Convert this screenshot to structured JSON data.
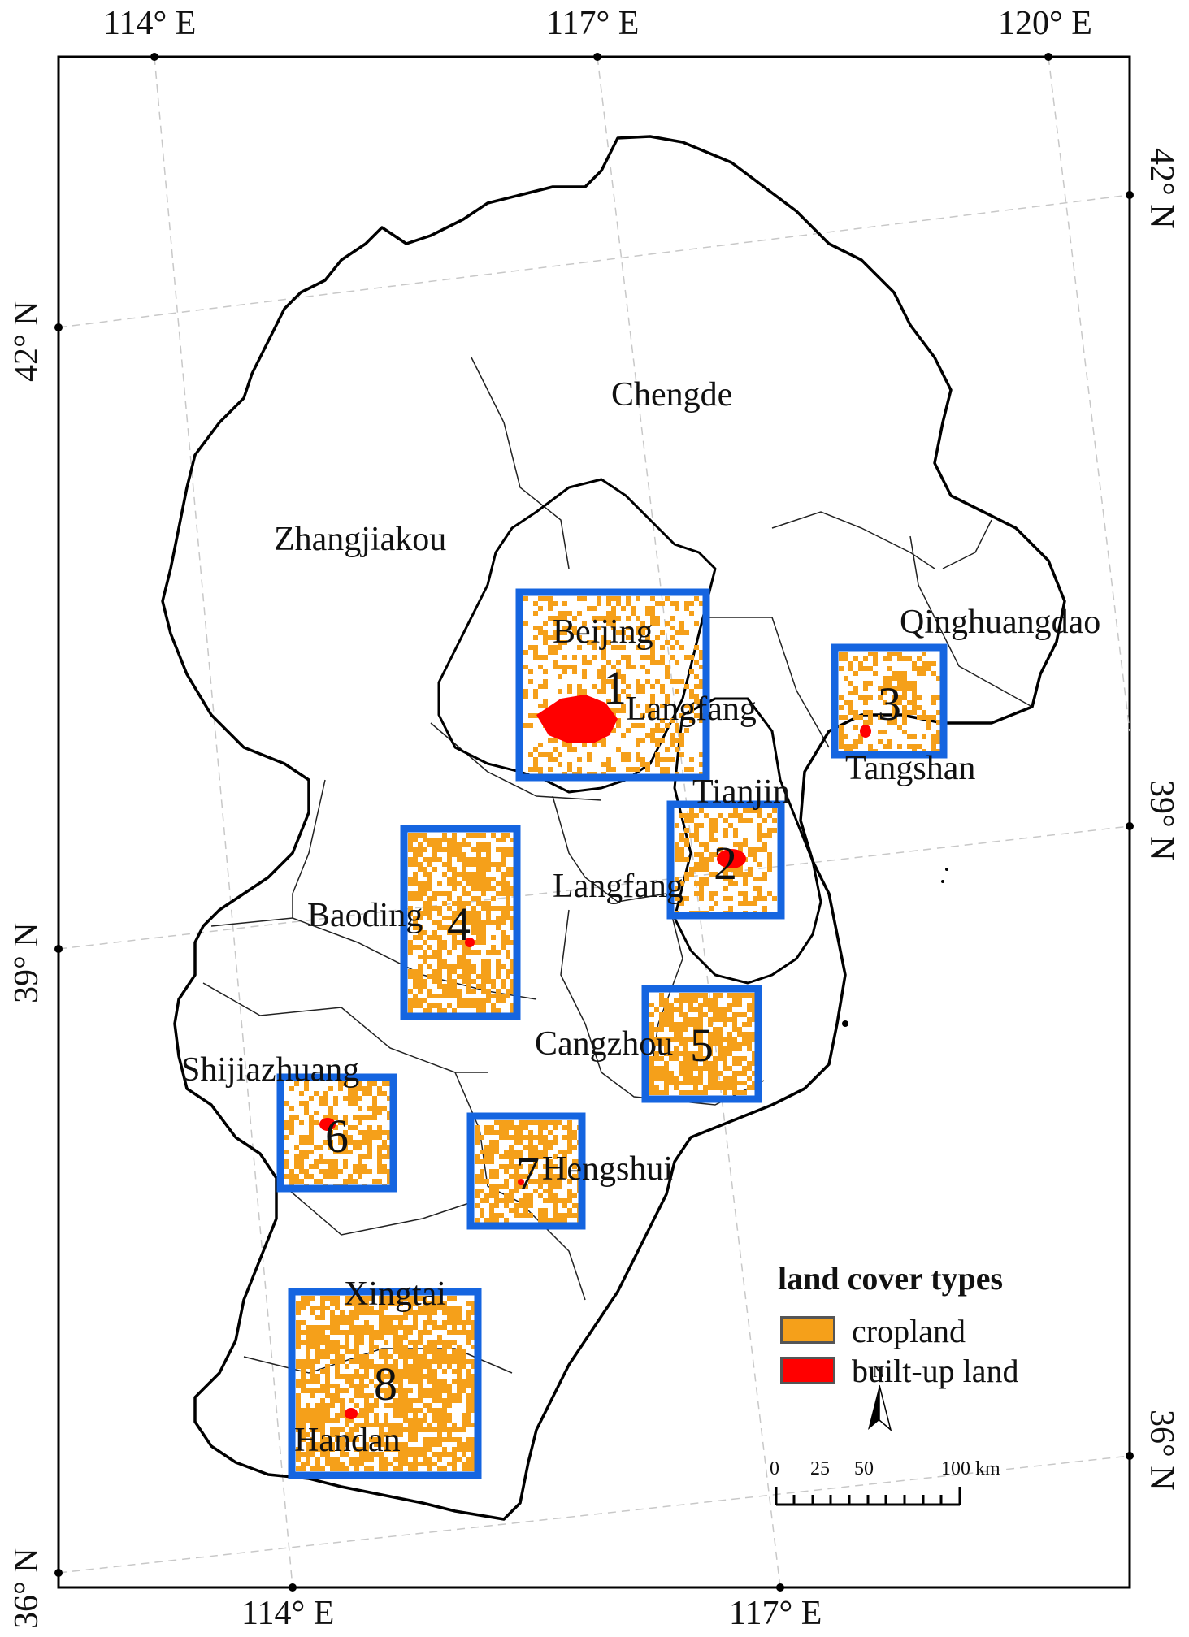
{
  "map": {
    "ticks": {
      "top": [
        "114° E",
        "117° E",
        "120° E"
      ],
      "bottom": [
        "114° E",
        "117° E"
      ],
      "left": [
        "42° N",
        "39° N",
        "36° N"
      ],
      "right": [
        "42° N",
        "39° N",
        "36° N"
      ]
    },
    "cities": [
      "Chengde",
      "Zhangjiakou",
      "Beijing",
      "Qinghuangdao",
      "Langfang",
      "Tangshan",
      "Tianjin",
      "Langfang",
      "Baoding",
      "Cangzhou",
      "Shijiazhuang",
      "Hengshui",
      "Xingtai",
      "Handan"
    ],
    "study_areas": [
      "1",
      "2",
      "3",
      "4",
      "5",
      "6",
      "7",
      "8"
    ],
    "legend": {
      "title": "land cover types",
      "items": [
        {
          "label": "cropland",
          "color": "#f5a01a"
        },
        {
          "label": "built-up land",
          "color": "#ff0000"
        }
      ]
    },
    "north_arrow": "N",
    "scale_bar": {
      "labels": [
        "0",
        "25",
        "50",
        "100 km"
      ]
    },
    "colors": {
      "box": "#1565e0",
      "cropland": "#f5a01a",
      "builtup": "#ff0000",
      "boundary": "#000000"
    }
  }
}
